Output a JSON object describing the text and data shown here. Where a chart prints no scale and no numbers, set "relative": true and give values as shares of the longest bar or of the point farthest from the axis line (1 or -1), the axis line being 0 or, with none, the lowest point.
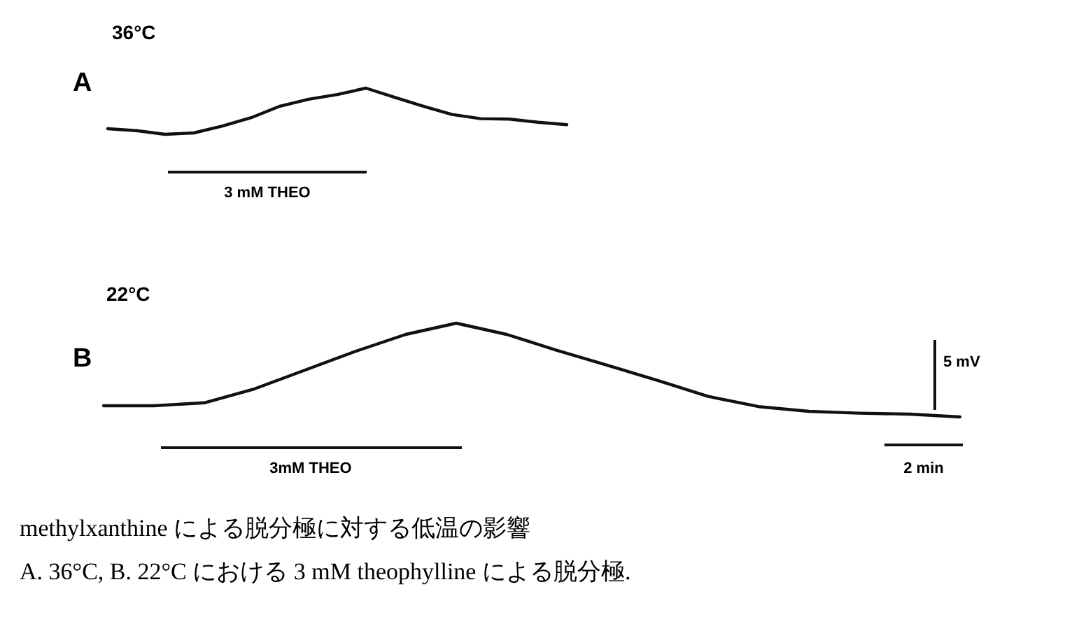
{
  "chart_data": [
    {
      "type": "line",
      "title": "A",
      "subtitle": "36°C",
      "relative": true,
      "categories": [
        null,
        null,
        null,
        null,
        null,
        null,
        null,
        null,
        null,
        null,
        null,
        null,
        null,
        null,
        null,
        null,
        null
      ],
      "series": [
        {
          "color": "#111111",
          "values": [
            0.12,
            0.08,
            0,
            0.03,
            0.18,
            0.36,
            0.61,
            0.76,
            0.86,
            1,
            0.8,
            0.61,
            0.43,
            0.34,
            0.33,
            0.26,
            0.21
          ]
        }
      ],
      "annotations": [
        "3 mM THEO"
      ]
    },
    {
      "type": "line",
      "title": "B",
      "subtitle": "22°C",
      "relative": true,
      "categories": [
        null,
        null,
        null,
        null,
        null,
        null,
        null,
        null,
        null,
        null,
        null,
        null,
        null,
        null,
        null,
        null,
        null,
        null
      ],
      "series": [
        {
          "color": "#111111",
          "values": [
            0.12,
            0.12,
            0.15,
            0.3,
            0.5,
            0.7,
            0.88,
            1,
            0.88,
            0.71,
            0.55,
            0.39,
            0.22,
            0.11,
            0.06,
            0.04,
            0.03,
            0
          ]
        }
      ],
      "annotations": [
        "3mM THEO",
        "5 mV",
        "2 min",
        "methylxanthine による脱分極に対する低温の影響",
        "A.  36°C,  B.  22°C における 3 mM theophylline による脱分極."
      ]
    }
  ]
}
